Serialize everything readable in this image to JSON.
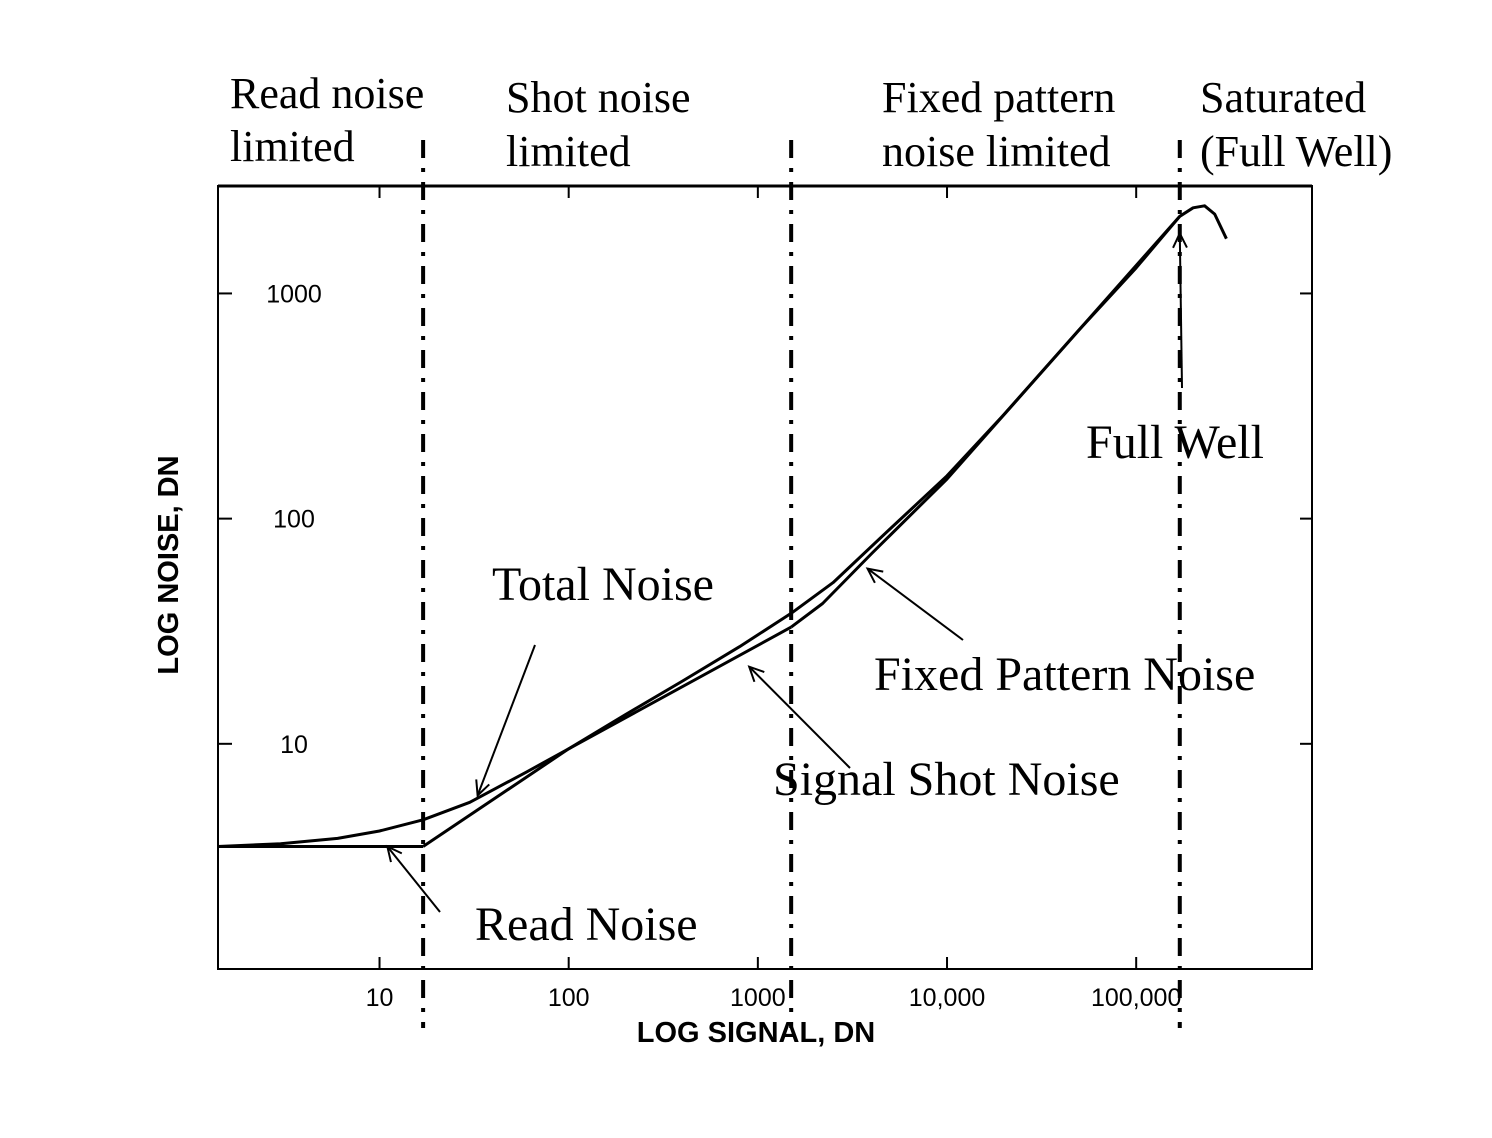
{
  "chart_data": {
    "type": "line",
    "title": "",
    "xlabel": "LOG SIGNAL, DN",
    "ylabel": "LOG NOISE, DN",
    "x_scale": "log",
    "y_scale": "log",
    "xlim": [
      1.4,
      850000
    ],
    "ylim": [
      1,
      3000
    ],
    "grid": false,
    "x_ticks": [
      10,
      100,
      1000,
      10000,
      100000
    ],
    "x_tick_labels": [
      "10",
      "100",
      "1000",
      "10,000",
      "100,000"
    ],
    "y_ticks": [
      10,
      100,
      1000
    ],
    "y_tick_labels": [
      "10",
      "100",
      "1000"
    ],
    "regions": [
      {
        "label": "Read noise limited"
      },
      {
        "label": "Shot noise limited"
      },
      {
        "label": "Fixed pattern noise limited"
      },
      {
        "label": "Saturated (Full Well)"
      }
    ],
    "region_boundaries_x": [
      17,
      1500,
      170000
    ],
    "series": [
      {
        "name": "Total Noise",
        "x": [
          1.4,
          3,
          6,
          10,
          17,
          30,
          60,
          100,
          200,
          400,
          800,
          1500,
          2500,
          5000,
          10000,
          20000,
          50000,
          100000,
          170000,
          200000,
          230000,
          260000,
          300000
        ],
        "y": [
          3.5,
          3.6,
          3.8,
          4.1,
          4.6,
          5.5,
          7.5,
          9.5,
          13.5,
          19,
          27,
          38,
          52,
          90,
          155,
          290,
          690,
          1300,
          2200,
          2400,
          2450,
          2250,
          1750
        ]
      },
      {
        "name": "Read Noise",
        "x": [
          1.4,
          17
        ],
        "y": [
          3.5,
          3.5
        ]
      },
      {
        "name": "Signal Shot Noise",
        "x": [
          17,
          100,
          1500
        ],
        "y": [
          3.5,
          9.5,
          33
        ]
      },
      {
        "name": "Fixed Pattern Noise",
        "x": [
          1500,
          2200,
          4000,
          10000,
          50000,
          170000
        ],
        "y": [
          33,
          42,
          70,
          150,
          690,
          2200
        ]
      }
    ],
    "annotations": [
      {
        "text": "Total Noise"
      },
      {
        "text": "Read Noise"
      },
      {
        "text": "Signal Shot Noise"
      },
      {
        "text": "Fixed Pattern Noise"
      },
      {
        "text": "Full Well"
      }
    ]
  }
}
